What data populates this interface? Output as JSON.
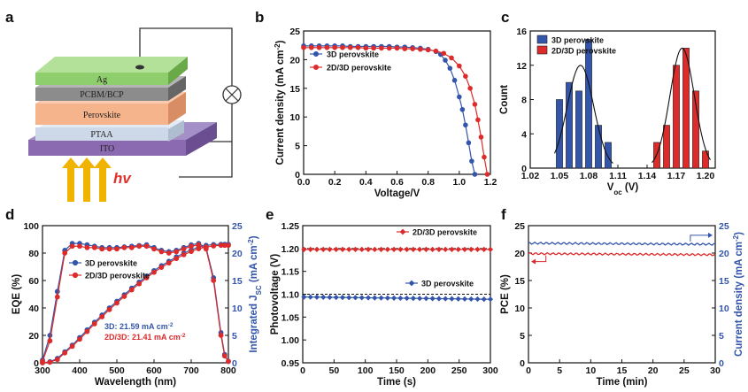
{
  "panel_labels": [
    "a",
    "b",
    "c",
    "d",
    "e",
    "f"
  ],
  "device": {
    "layers": [
      "Ag",
      "PCBM/BCP",
      "Perovskite",
      "PTAA",
      "ITO"
    ],
    "light_label": "hv",
    "colors": {
      "Ag": "#8fce6c",
      "PCBM": "#8c8c8c",
      "Perovskite": "#f6b48c",
      "PTAA": "#cdd9e8",
      "ITO": "#8b6ab1",
      "arrow": "#f0b400",
      "hv": "#e0302b"
    }
  },
  "colors": {
    "blue": "#3355aa",
    "red": "#dd2a2a"
  },
  "chart_data": [
    {
      "panel": "b",
      "type": "line",
      "xlabel": "Voltage/V",
      "ylabel": "Current density (mA cm",
      "ylabel_sup": "-2",
      "ylabel_close": ")",
      "xlim": [
        0,
        1.2
      ],
      "ylim": [
        0,
        25
      ],
      "xticks": [
        "0.0",
        "0.2",
        "0.4",
        "0.6",
        "0.8",
        "1.0",
        "1.2"
      ],
      "yticks": [
        "0",
        "5",
        "10",
        "15",
        "20",
        "25"
      ],
      "series": [
        {
          "name": "3D perovskite",
          "x": [
            0,
            0.05,
            0.1,
            0.15,
            0.2,
            0.25,
            0.3,
            0.35,
            0.4,
            0.45,
            0.5,
            0.55,
            0.6,
            0.65,
            0.7,
            0.75,
            0.8,
            0.85,
            0.88,
            0.91,
            0.94,
            0.97,
            1.0,
            1.02,
            1.04,
            1.06,
            1.08,
            1.1
          ],
          "y": [
            22.4,
            22.4,
            22.4,
            22.4,
            22.4,
            22.4,
            22.3,
            22.3,
            22.3,
            22.3,
            22.3,
            22.3,
            22.2,
            22.2,
            22.1,
            22.0,
            21.8,
            21.4,
            20.9,
            19.9,
            18.5,
            16.4,
            13.5,
            11.3,
            8.6,
            5.5,
            2.3,
            0
          ]
        },
        {
          "name": "2D/3D perovskite",
          "x": [
            0,
            0.05,
            0.1,
            0.15,
            0.2,
            0.25,
            0.3,
            0.35,
            0.4,
            0.45,
            0.5,
            0.55,
            0.6,
            0.65,
            0.7,
            0.75,
            0.8,
            0.85,
            0.9,
            0.95,
            1.0,
            1.04,
            1.07,
            1.1,
            1.12,
            1.14,
            1.16,
            1.18
          ],
          "y": [
            22.1,
            22.1,
            22.1,
            22.1,
            22.1,
            22.1,
            22.1,
            22.1,
            22.0,
            22.0,
            22.0,
            22.0,
            22.0,
            21.9,
            21.9,
            21.8,
            21.7,
            21.5,
            21.1,
            20.3,
            18.9,
            17.1,
            15.0,
            12.2,
            9.5,
            6.5,
            3.0,
            0
          ]
        }
      ]
    },
    {
      "panel": "c",
      "type": "bar",
      "xlabel": "V",
      "xlabel_sub": "oc",
      "xlabel_unit": " (V)",
      "ylabel": "Count",
      "xlim": [
        1.02,
        1.21
      ],
      "ylim": [
        0,
        16
      ],
      "xticks": [
        "1.02",
        "1.05",
        "1.08",
        "1.11",
        "1.14",
        "1.17",
        "1.20"
      ],
      "yticks": [
        "0",
        "4",
        "8",
        "12",
        "16"
      ],
      "series": [
        {
          "name": "3D perovskite",
          "x": [
            1.05,
            1.06,
            1.07,
            1.08,
            1.09,
            1.1
          ],
          "values": [
            8,
            10,
            9,
            15,
            5,
            3
          ]
        },
        {
          "name": "2D/3D perovskite",
          "x": [
            1.15,
            1.16,
            1.17,
            1.18,
            1.19,
            1.2
          ],
          "values": [
            3,
            5,
            12,
            14,
            9,
            2
          ]
        }
      ]
    },
    {
      "panel": "d",
      "type": "line",
      "xlabel": "Wavelength (nm)",
      "ylabel": "EQE (%)",
      "y2label": "Integrated J",
      "y2label_sub": "SC",
      "y2label_tail": " (mA cm",
      "y2label_sup": "-2",
      "y2label_close": ")",
      "xlim": [
        300,
        800
      ],
      "ylim": [
        0,
        100
      ],
      "y2lim": [
        0,
        25
      ],
      "xticks": [
        "300",
        "400",
        "500",
        "600",
        "700",
        "800"
      ],
      "yticks": [
        "0",
        "20",
        "40",
        "60",
        "80",
        "100"
      ],
      "y2ticks": [
        "0",
        "5",
        "10",
        "15",
        "20",
        "25"
      ],
      "annotations": [
        "3D: 21.59 mA cm",
        "2D/3D: 21.41 mA cm"
      ],
      "annotation_sup": "-2",
      "series": [
        {
          "name": "3D perovskite",
          "x": [
            300,
            320,
            340,
            360,
            380,
            400,
            420,
            440,
            460,
            480,
            500,
            520,
            540,
            560,
            580,
            600,
            620,
            640,
            660,
            680,
            700,
            720,
            740,
            760,
            780,
            790,
            800
          ],
          "eqe": [
            2,
            20,
            52,
            82,
            87,
            87,
            86,
            85,
            84,
            84,
            84,
            84.5,
            85,
            85.5,
            86,
            84,
            82,
            81,
            82,
            84,
            86,
            87,
            84,
            62,
            22,
            6,
            1
          ],
          "jsc": [
            0,
            0.2,
            0.8,
            2,
            3.2,
            4.6,
            6,
            7.4,
            8.7,
            10,
            11.2,
            12.4,
            13.6,
            14.7,
            15.8,
            16.8,
            17.7,
            18.5,
            19.3,
            20,
            20.6,
            21.1,
            21.4,
            21.55,
            21.59,
            21.59,
            21.59
          ]
        },
        {
          "name": "2D/3D perovskite",
          "x": [
            300,
            320,
            340,
            360,
            380,
            400,
            420,
            440,
            460,
            480,
            500,
            520,
            540,
            560,
            580,
            600,
            620,
            640,
            660,
            680,
            700,
            720,
            740,
            760,
            780,
            790,
            800
          ],
          "eqe": [
            1,
            16,
            48,
            80,
            85,
            85,
            84,
            84,
            83,
            83,
            83,
            84,
            84,
            85,
            85,
            83,
            81,
            80,
            81,
            83,
            85,
            86,
            83,
            60,
            20,
            5,
            1
          ],
          "jsc": [
            0,
            0.1,
            0.6,
            1.8,
            3,
            4.3,
            5.7,
            7.1,
            8.4,
            9.7,
            10.9,
            12.1,
            13.3,
            14.4,
            15.5,
            16.5,
            17.4,
            18.2,
            19,
            19.7,
            20.3,
            20.8,
            21.1,
            21.3,
            21.41,
            21.41,
            21.41
          ]
        }
      ]
    },
    {
      "panel": "e",
      "type": "line",
      "xlabel": "Time (s)",
      "ylabel": "Photovoltage (V)",
      "xlim": [
        0,
        300
      ],
      "ylim": [
        0.95,
        1.25
      ],
      "xticks": [
        "0",
        "50",
        "100",
        "150",
        "200",
        "250",
        "300"
      ],
      "yticks": [
        "0.95",
        "1.00",
        "1.05",
        "1.10",
        "1.15",
        "1.20",
        "1.25"
      ],
      "reference_lines": [
        1.1,
        1.2
      ],
      "series": [
        {
          "name": "2D/3D perovskite",
          "start": 1.198,
          "end": 1.198
        },
        {
          "name": "3D perovskite",
          "start": 1.094,
          "end": 1.089
        }
      ]
    },
    {
      "panel": "f",
      "type": "line",
      "xlabel": "Time (min)",
      "ylabel": "PCE (%)",
      "y2label": "Current density (mA cm",
      "y2label_sup": "-2",
      "y2label_close": ")",
      "xlim": [
        0,
        30
      ],
      "ylim": [
        0,
        25
      ],
      "y2lim": [
        0,
        25
      ],
      "xticks": [
        "0",
        "5",
        "10",
        "15",
        "20",
        "25",
        "30"
      ],
      "yticks": [
        "0",
        "5",
        "10",
        "15",
        "20",
        "25"
      ],
      "y2ticks": [
        "0",
        "5",
        "10",
        "15",
        "20",
        "25"
      ],
      "series": [
        {
          "name": "PCE",
          "axis": "left",
          "start": 19.9,
          "end": 19.7
        },
        {
          "name": "Current density",
          "axis": "right",
          "start": 21.8,
          "end": 21.6
        }
      ]
    }
  ]
}
